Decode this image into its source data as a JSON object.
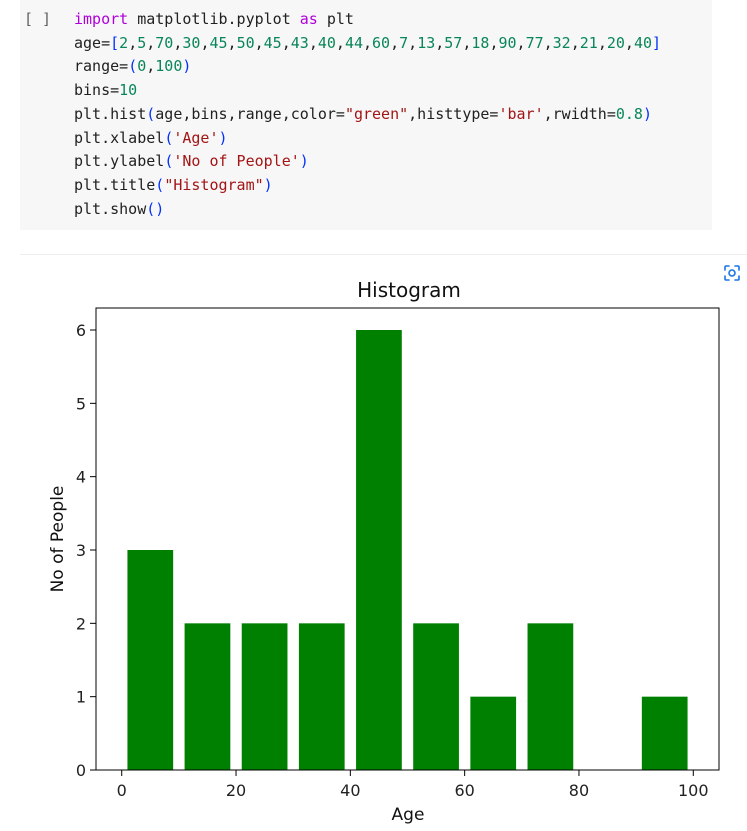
{
  "cell": {
    "run_indicator": "[ ]",
    "code_lines": [
      [
        {
          "t": "import",
          "c": "kw"
        },
        {
          "t": " matplotlib.pyplot ",
          "c": ""
        },
        {
          "t": "as",
          "c": "kw"
        },
        {
          "t": " plt",
          "c": ""
        }
      ],
      [
        {
          "t": "age=",
          "c": ""
        },
        {
          "t": "[",
          "c": "pn"
        },
        {
          "t": "2",
          "c": "num"
        },
        {
          "t": ",",
          "c": ""
        },
        {
          "t": "5",
          "c": "num"
        },
        {
          "t": ",",
          "c": ""
        },
        {
          "t": "70",
          "c": "num"
        },
        {
          "t": ",",
          "c": ""
        },
        {
          "t": "30",
          "c": "num"
        },
        {
          "t": ",",
          "c": ""
        },
        {
          "t": "45",
          "c": "num"
        },
        {
          "t": ",",
          "c": ""
        },
        {
          "t": "50",
          "c": "num"
        },
        {
          "t": ",",
          "c": ""
        },
        {
          "t": "45",
          "c": "num"
        },
        {
          "t": ",",
          "c": ""
        },
        {
          "t": "43",
          "c": "num"
        },
        {
          "t": ",",
          "c": ""
        },
        {
          "t": "40",
          "c": "num"
        },
        {
          "t": ",",
          "c": ""
        },
        {
          "t": "44",
          "c": "num"
        },
        {
          "t": ",",
          "c": ""
        },
        {
          "t": "60",
          "c": "num"
        },
        {
          "t": ",",
          "c": ""
        },
        {
          "t": "7",
          "c": "num"
        },
        {
          "t": ",",
          "c": ""
        },
        {
          "t": "13",
          "c": "num"
        },
        {
          "t": ",",
          "c": ""
        },
        {
          "t": "57",
          "c": "num"
        },
        {
          "t": ",",
          "c": ""
        },
        {
          "t": "18",
          "c": "num"
        },
        {
          "t": ",",
          "c": ""
        },
        {
          "t": "90",
          "c": "num"
        },
        {
          "t": ",",
          "c": ""
        },
        {
          "t": "77",
          "c": "num"
        },
        {
          "t": ",",
          "c": ""
        },
        {
          "t": "32",
          "c": "num"
        },
        {
          "t": ",",
          "c": ""
        },
        {
          "t": "21",
          "c": "num"
        },
        {
          "t": ",",
          "c": ""
        },
        {
          "t": "20",
          "c": "num"
        },
        {
          "t": ",",
          "c": ""
        },
        {
          "t": "40",
          "c": "num"
        },
        {
          "t": "]",
          "c": "pn"
        }
      ],
      [
        {
          "t": "range=",
          "c": ""
        },
        {
          "t": "(",
          "c": "pn"
        },
        {
          "t": "0",
          "c": "num"
        },
        {
          "t": ",",
          "c": ""
        },
        {
          "t": "100",
          "c": "num"
        },
        {
          "t": ")",
          "c": "pn"
        }
      ],
      [
        {
          "t": "bins=",
          "c": ""
        },
        {
          "t": "10",
          "c": "num"
        }
      ],
      [
        {
          "t": "plt.hist",
          "c": ""
        },
        {
          "t": "(",
          "c": "pn"
        },
        {
          "t": "age,bins,range,color=",
          "c": ""
        },
        {
          "t": "\"green\"",
          "c": "str"
        },
        {
          "t": ",histtype=",
          "c": ""
        },
        {
          "t": "'bar'",
          "c": "str"
        },
        {
          "t": ",rwidth=",
          "c": ""
        },
        {
          "t": "0.8",
          "c": "num"
        },
        {
          "t": ")",
          "c": "pn"
        }
      ],
      [
        {
          "t": "plt.xlabel",
          "c": ""
        },
        {
          "t": "(",
          "c": "pn"
        },
        {
          "t": "'Age'",
          "c": "str"
        },
        {
          "t": ")",
          "c": "pn"
        }
      ],
      [
        {
          "t": "plt.ylabel",
          "c": ""
        },
        {
          "t": "(",
          "c": "pn"
        },
        {
          "t": "'No of People'",
          "c": "str"
        },
        {
          "t": ")",
          "c": "pn"
        }
      ],
      [
        {
          "t": "plt.title",
          "c": ""
        },
        {
          "t": "(",
          "c": "pn"
        },
        {
          "t": "\"Histogram\"",
          "c": "str"
        },
        {
          "t": ")",
          "c": "pn"
        }
      ],
      [
        {
          "t": "plt.show",
          "c": ""
        },
        {
          "t": "()",
          "c": "pn"
        }
      ]
    ]
  },
  "output": {
    "icon": "image-focus-icon"
  },
  "chart_data": {
    "type": "bar",
    "title": "Histogram",
    "xlabel": "Age",
    "ylabel": "No of People",
    "bin_edges": [
      0,
      10,
      20,
      30,
      40,
      50,
      60,
      70,
      80,
      90,
      100
    ],
    "values": [
      3,
      2,
      2,
      2,
      6,
      2,
      1,
      2,
      0,
      1
    ],
    "rwidth": 0.8,
    "color": "#008000",
    "xlim": [
      -4.5,
      104.5
    ],
    "ylim": [
      0,
      6.3
    ],
    "xticks": [
      0,
      20,
      40,
      60,
      80,
      100
    ],
    "yticks": [
      0,
      1,
      2,
      3,
      4,
      5,
      6
    ],
    "grid": false
  }
}
